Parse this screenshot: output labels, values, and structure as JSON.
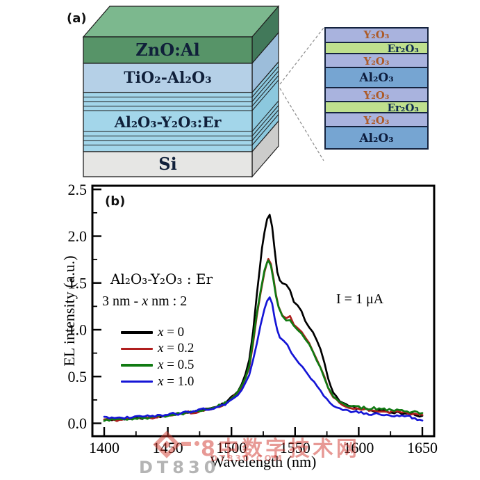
{
  "panel_a": {
    "label": "(a)",
    "device": {
      "top_color": "#7cb88e",
      "layers": [
        {
          "name": "ZnO:Al",
          "front_color": "#579468",
          "side_color": "#42795a"
        },
        {
          "name": "TiO₂-Al₂O₃",
          "front_color": "#b5d0e7",
          "side_color": "#9cbdda"
        },
        {
          "name": "Al₂O₃-Y₂O₃:Er",
          "front_color": "#a3d6ea",
          "side_color": "#8cc8de"
        },
        {
          "name": "Si",
          "front_color": "#e6e6e4",
          "side_color": "#cccccb"
        }
      ]
    },
    "stack": {
      "types": {
        "y2o3": {
          "fill": "#a9b3de",
          "text_color": "#ad5b28"
        },
        "er2o3": {
          "fill": "#bfe08e",
          "text_color": "#0e2a52"
        },
        "al2o3": {
          "fill": "#76a5d2",
          "text_color": "#0c1c3d"
        }
      },
      "layers": [
        {
          "type": "y2o3",
          "label": "Y₂O₃"
        },
        {
          "type": "er2o3",
          "label": "Er₂O₃"
        },
        {
          "type": "y2o3",
          "label": "Y₂O₃"
        },
        {
          "type": "al2o3",
          "label": "Al₂O₃"
        },
        {
          "type": "y2o3",
          "label": "Y₂O₃"
        },
        {
          "type": "er2o3",
          "label": "Er₂O₃"
        },
        {
          "type": "y2o3",
          "label": "Y₂O₃"
        },
        {
          "type": "al2o3",
          "label": "Al₂O₃"
        }
      ]
    }
  },
  "panel_b": {
    "label": "(b)",
    "annotation_line1": "Al₂O₃-Y₂O₃ : Er",
    "annotation_line2_prefix": "3 nm - ",
    "annotation_line2_var": "x",
    "annotation_line2_suffix": " nm : 2",
    "current_note": "I = 1 μA",
    "legend": [
      {
        "var": "x",
        "eq": " = 0",
        "color": "#000000"
      },
      {
        "var": "x",
        "eq": " = 0.2",
        "color": "#b01e1e"
      },
      {
        "var": "x",
        "eq": " = 0.5",
        "color": "#107a12"
      },
      {
        "var": "x",
        "eq": " = 1.0",
        "color": "#1515d6"
      }
    ]
  },
  "chart_data": {
    "type": "line",
    "title": "",
    "xlabel": "Wavelength (nm)",
    "ylabel": "EL intensity (a.u.)",
    "xlim": [
      1400,
      1650
    ],
    "ylim": [
      0,
      2.5
    ],
    "grid": false,
    "legend_position": "upper-left-inside",
    "x_ticks": [
      1400,
      1450,
      1500,
      1550,
      1600,
      1650
    ],
    "x_tick_labels": [
      "1400",
      "1450",
      "1500",
      "1550",
      "1600",
      "1650"
    ],
    "x_minor_step": 25,
    "y_ticks": [
      0.0,
      0.5,
      1.0,
      1.5,
      2.0,
      2.5
    ],
    "y_tick_labels": [
      "0.0",
      "0.5",
      "1.0",
      "1.5",
      "2.0",
      "2.5"
    ],
    "y_minor_step": 0.25,
    "peak_wavelength_nm": 1530,
    "series": [
      {
        "name": "x = 0",
        "color": "#000000",
        "points": [
          [
            1400,
            0.04
          ],
          [
            1408,
            0.04
          ],
          [
            1416,
            0.05
          ],
          [
            1424,
            0.05
          ],
          [
            1432,
            0.06
          ],
          [
            1440,
            0.07
          ],
          [
            1448,
            0.08
          ],
          [
            1456,
            0.1
          ],
          [
            1464,
            0.11
          ],
          [
            1472,
            0.13
          ],
          [
            1480,
            0.15
          ],
          [
            1488,
            0.18
          ],
          [
            1495,
            0.22
          ],
          [
            1500,
            0.27
          ],
          [
            1505,
            0.34
          ],
          [
            1508,
            0.42
          ],
          [
            1511,
            0.52
          ],
          [
            1514,
            0.68
          ],
          [
            1517,
            0.98
          ],
          [
            1520,
            1.38
          ],
          [
            1522,
            1.62
          ],
          [
            1524,
            1.87
          ],
          [
            1526,
            2.05
          ],
          [
            1528,
            2.18
          ],
          [
            1530,
            2.23
          ],
          [
            1532,
            2.1
          ],
          [
            1534,
            1.85
          ],
          [
            1536,
            1.62
          ],
          [
            1538,
            1.52
          ],
          [
            1540,
            1.5
          ],
          [
            1543,
            1.48
          ],
          [
            1546,
            1.42
          ],
          [
            1549,
            1.3
          ],
          [
            1552,
            1.26
          ],
          [
            1555,
            1.2
          ],
          [
            1558,
            1.1
          ],
          [
            1561,
            1.02
          ],
          [
            1564,
            0.97
          ],
          [
            1567,
            0.88
          ],
          [
            1570,
            0.8
          ],
          [
            1573,
            0.65
          ],
          [
            1576,
            0.48
          ],
          [
            1580,
            0.33
          ],
          [
            1585,
            0.24
          ],
          [
            1590,
            0.2
          ],
          [
            1600,
            0.16
          ],
          [
            1610,
            0.14
          ],
          [
            1620,
            0.13
          ],
          [
            1630,
            0.11
          ],
          [
            1640,
            0.1
          ],
          [
            1650,
            0.08
          ]
        ]
      },
      {
        "name": "x = 0.2",
        "color": "#b01e1e",
        "points": [
          [
            1400,
            0.04
          ],
          [
            1408,
            0.04
          ],
          [
            1416,
            0.04
          ],
          [
            1424,
            0.05
          ],
          [
            1432,
            0.06
          ],
          [
            1440,
            0.06
          ],
          [
            1448,
            0.08
          ],
          [
            1456,
            0.09
          ],
          [
            1464,
            0.11
          ],
          [
            1472,
            0.12
          ],
          [
            1480,
            0.14
          ],
          [
            1488,
            0.17
          ],
          [
            1495,
            0.21
          ],
          [
            1500,
            0.26
          ],
          [
            1505,
            0.32
          ],
          [
            1508,
            0.39
          ],
          [
            1511,
            0.48
          ],
          [
            1514,
            0.6
          ],
          [
            1517,
            0.85
          ],
          [
            1520,
            1.15
          ],
          [
            1523,
            1.4
          ],
          [
            1526,
            1.62
          ],
          [
            1528,
            1.72
          ],
          [
            1529,
            1.76
          ],
          [
            1531,
            1.7
          ],
          [
            1533,
            1.55
          ],
          [
            1535,
            1.38
          ],
          [
            1537,
            1.25
          ],
          [
            1540,
            1.15
          ],
          [
            1543,
            1.12
          ],
          [
            1546,
            1.15
          ],
          [
            1549,
            1.05
          ],
          [
            1552,
            1.02
          ],
          [
            1555,
            0.97
          ],
          [
            1558,
            0.91
          ],
          [
            1561,
            0.85
          ],
          [
            1564,
            0.77
          ],
          [
            1567,
            0.68
          ],
          [
            1570,
            0.6
          ],
          [
            1573,
            0.5
          ],
          [
            1576,
            0.38
          ],
          [
            1580,
            0.28
          ],
          [
            1585,
            0.22
          ],
          [
            1590,
            0.18
          ],
          [
            1600,
            0.15
          ],
          [
            1610,
            0.14
          ],
          [
            1620,
            0.13
          ],
          [
            1630,
            0.12
          ],
          [
            1640,
            0.1
          ],
          [
            1650,
            0.09
          ]
        ]
      },
      {
        "name": "x = 0.5",
        "color": "#107a12",
        "points": [
          [
            1400,
            0.04
          ],
          [
            1408,
            0.04
          ],
          [
            1416,
            0.05
          ],
          [
            1424,
            0.05
          ],
          [
            1432,
            0.06
          ],
          [
            1440,
            0.07
          ],
          [
            1448,
            0.08
          ],
          [
            1456,
            0.1
          ],
          [
            1464,
            0.11
          ],
          [
            1472,
            0.13
          ],
          [
            1480,
            0.15
          ],
          [
            1488,
            0.18
          ],
          [
            1495,
            0.22
          ],
          [
            1500,
            0.27
          ],
          [
            1505,
            0.33
          ],
          [
            1508,
            0.4
          ],
          [
            1511,
            0.49
          ],
          [
            1514,
            0.62
          ],
          [
            1517,
            0.88
          ],
          [
            1520,
            1.18
          ],
          [
            1523,
            1.42
          ],
          [
            1526,
            1.63
          ],
          [
            1528,
            1.71
          ],
          [
            1529,
            1.74
          ],
          [
            1531,
            1.68
          ],
          [
            1533,
            1.53
          ],
          [
            1535,
            1.36
          ],
          [
            1537,
            1.24
          ],
          [
            1540,
            1.14
          ],
          [
            1543,
            1.1
          ],
          [
            1546,
            1.1
          ],
          [
            1549,
            1.04
          ],
          [
            1552,
            1.0
          ],
          [
            1555,
            0.96
          ],
          [
            1558,
            0.9
          ],
          [
            1561,
            0.84
          ],
          [
            1564,
            0.76
          ],
          [
            1567,
            0.67
          ],
          [
            1570,
            0.6
          ],
          [
            1573,
            0.49
          ],
          [
            1576,
            0.38
          ],
          [
            1580,
            0.29
          ],
          [
            1585,
            0.23
          ],
          [
            1590,
            0.2
          ],
          [
            1600,
            0.17
          ],
          [
            1610,
            0.16
          ],
          [
            1620,
            0.15
          ],
          [
            1630,
            0.14
          ],
          [
            1640,
            0.12
          ],
          [
            1650,
            0.11
          ]
        ]
      },
      {
        "name": "x = 1.0",
        "color": "#1515d6",
        "points": [
          [
            1400,
            0.06
          ],
          [
            1408,
            0.06
          ],
          [
            1416,
            0.06
          ],
          [
            1424,
            0.07
          ],
          [
            1432,
            0.07
          ],
          [
            1440,
            0.08
          ],
          [
            1448,
            0.09
          ],
          [
            1456,
            0.1
          ],
          [
            1464,
            0.12
          ],
          [
            1472,
            0.13
          ],
          [
            1480,
            0.15
          ],
          [
            1488,
            0.17
          ],
          [
            1495,
            0.2
          ],
          [
            1500,
            0.25
          ],
          [
            1505,
            0.3
          ],
          [
            1508,
            0.36
          ],
          [
            1511,
            0.43
          ],
          [
            1514,
            0.52
          ],
          [
            1517,
            0.68
          ],
          [
            1520,
            0.86
          ],
          [
            1523,
            1.05
          ],
          [
            1526,
            1.22
          ],
          [
            1528,
            1.31
          ],
          [
            1530,
            1.35
          ],
          [
            1532,
            1.28
          ],
          [
            1534,
            1.12
          ],
          [
            1536,
            1.0
          ],
          [
            1538,
            0.92
          ],
          [
            1541,
            0.88
          ],
          [
            1544,
            0.84
          ],
          [
            1547,
            0.76
          ],
          [
            1550,
            0.7
          ],
          [
            1553,
            0.65
          ],
          [
            1556,
            0.6
          ],
          [
            1560,
            0.52
          ],
          [
            1565,
            0.44
          ],
          [
            1570,
            0.35
          ],
          [
            1575,
            0.25
          ],
          [
            1580,
            0.19
          ],
          [
            1585,
            0.16
          ],
          [
            1590,
            0.14
          ],
          [
            1600,
            0.11
          ],
          [
            1610,
            0.1
          ],
          [
            1620,
            0.09
          ],
          [
            1630,
            0.08
          ],
          [
            1640,
            0.07
          ],
          [
            1650,
            0.03
          ]
        ]
      }
    ]
  },
  "watermark": {
    "logo": "diamond-logo",
    "text_cn": "8中数字技术网",
    "text_sub": "DT830.COM",
    "text_gray": "DT830"
  }
}
